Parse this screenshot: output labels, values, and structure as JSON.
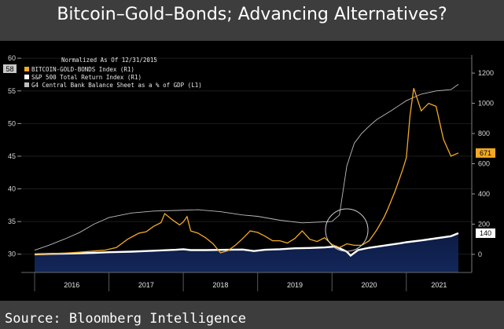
{
  "header": {
    "title": "Bitcoin–Gold–Bonds; Advancing Alternatives?"
  },
  "footer": {
    "source": "Source: Bloomberg Intelligence"
  },
  "chart_data": {
    "type": "line",
    "legend_title": "Normalized As Of 12/31/2015",
    "legend_position": "top-left",
    "x_categories": [
      "2016",
      "2017",
      "2018",
      "2019",
      "2020",
      "2021"
    ],
    "left_axis": {
      "ticks": [
        30,
        35,
        40,
        45,
        50,
        55,
        60
      ],
      "range": [
        27.2,
        60.5
      ],
      "marker": 58
    },
    "right_axis": {
      "ticks": [
        0,
        200,
        400,
        600,
        800,
        1000,
        1200
      ],
      "range": [
        -120,
        1320
      ]
    },
    "last_value_labels": [
      {
        "series": "BITCOIN-GOLD-BONDS Index (R1)",
        "text": "671",
        "value": 671
      },
      {
        "series": "S&P 500 Total Return Index (R1)",
        "text": "140",
        "value": 140
      }
    ],
    "series": [
      {
        "name": "BITCOIN-GOLD-BONDS Index (R1)",
        "axis": "right",
        "color": "#f2a925",
        "x": [
          2016.0,
          2016.2,
          2016.4,
          2016.6,
          2016.8,
          2016.95,
          2017.1,
          2017.25,
          2017.4,
          2017.5,
          2017.6,
          2017.7,
          2017.75,
          2017.85,
          2017.95,
          2018.0,
          2018.05,
          2018.1,
          2018.2,
          2018.3,
          2018.4,
          2018.5,
          2018.6,
          2018.7,
          2018.8,
          2018.9,
          2019.0,
          2019.1,
          2019.2,
          2019.3,
          2019.4,
          2019.5,
          2019.6,
          2019.7,
          2019.8,
          2019.9,
          2020.0,
          2020.1,
          2020.2,
          2020.3,
          2020.4,
          2020.5,
          2020.6,
          2020.7,
          2020.75,
          2020.85,
          2020.95,
          2021.0,
          2021.05,
          2021.1,
          2021.2,
          2021.3,
          2021.4,
          2021.5,
          2021.6,
          2021.7
        ],
        "values": [
          0,
          4,
          8,
          14,
          22,
          28,
          45,
          100,
          140,
          150,
          185,
          210,
          270,
          230,
          195,
          215,
          250,
          155,
          140,
          110,
          70,
          10,
          25,
          60,
          105,
          155,
          145,
          120,
          90,
          90,
          75,
          105,
          155,
          100,
          85,
          110,
          65,
          45,
          70,
          60,
          60,
          90,
          160,
          245,
          300,
          420,
          560,
          640,
          920,
          1100,
          950,
          1000,
          980,
          760,
          650,
          671
        ]
      },
      {
        "name": "S&P 500 Total Return Index (R1)",
        "axis": "right",
        "color": "#ffffff",
        "x": [
          2016.0,
          2016.2,
          2016.5,
          2016.8,
          2017.0,
          2017.3,
          2017.6,
          2017.9,
          2018.0,
          2018.1,
          2018.3,
          2018.6,
          2018.8,
          2018.95,
          2019.1,
          2019.3,
          2019.5,
          2019.7,
          2019.9,
          2020.05,
          2020.2,
          2020.25,
          2020.35,
          2020.5,
          2020.7,
          2020.9,
          2021.0,
          2021.2,
          2021.4,
          2021.6,
          2021.7
        ],
        "values": [
          0,
          3,
          6,
          10,
          14,
          18,
          24,
          30,
          34,
          28,
          28,
          30,
          32,
          22,
          30,
          34,
          40,
          42,
          46,
          52,
          18,
          -8,
          28,
          44,
          58,
          72,
          80,
          92,
          106,
          120,
          140
        ]
      },
      {
        "name": "G4 Central Bank Balance Sheet as a % of GDP (L1)",
        "axis": "left",
        "color": "#bdbdbd",
        "x": [
          2016.0,
          2016.2,
          2016.4,
          2016.6,
          2016.8,
          2017.0,
          2017.3,
          2017.6,
          2017.9,
          2018.2,
          2018.5,
          2018.8,
          2019.0,
          2019.3,
          2019.6,
          2019.8,
          2020.0,
          2020.1,
          2020.2,
          2020.3,
          2020.4,
          2020.5,
          2020.6,
          2020.8,
          2021.0,
          2021.2,
          2021.4,
          2021.6,
          2021.7
        ],
        "values": [
          30.6,
          31.4,
          32.3,
          33.3,
          34.6,
          35.6,
          36.3,
          36.6,
          36.7,
          36.8,
          36.5,
          36.0,
          35.8,
          35.2,
          34.8,
          34.9,
          35.0,
          36.0,
          43.5,
          47.0,
          48.5,
          49.6,
          50.6,
          52.0,
          53.5,
          54.5,
          55.0,
          55.2,
          56.0
        ]
      }
    ]
  }
}
